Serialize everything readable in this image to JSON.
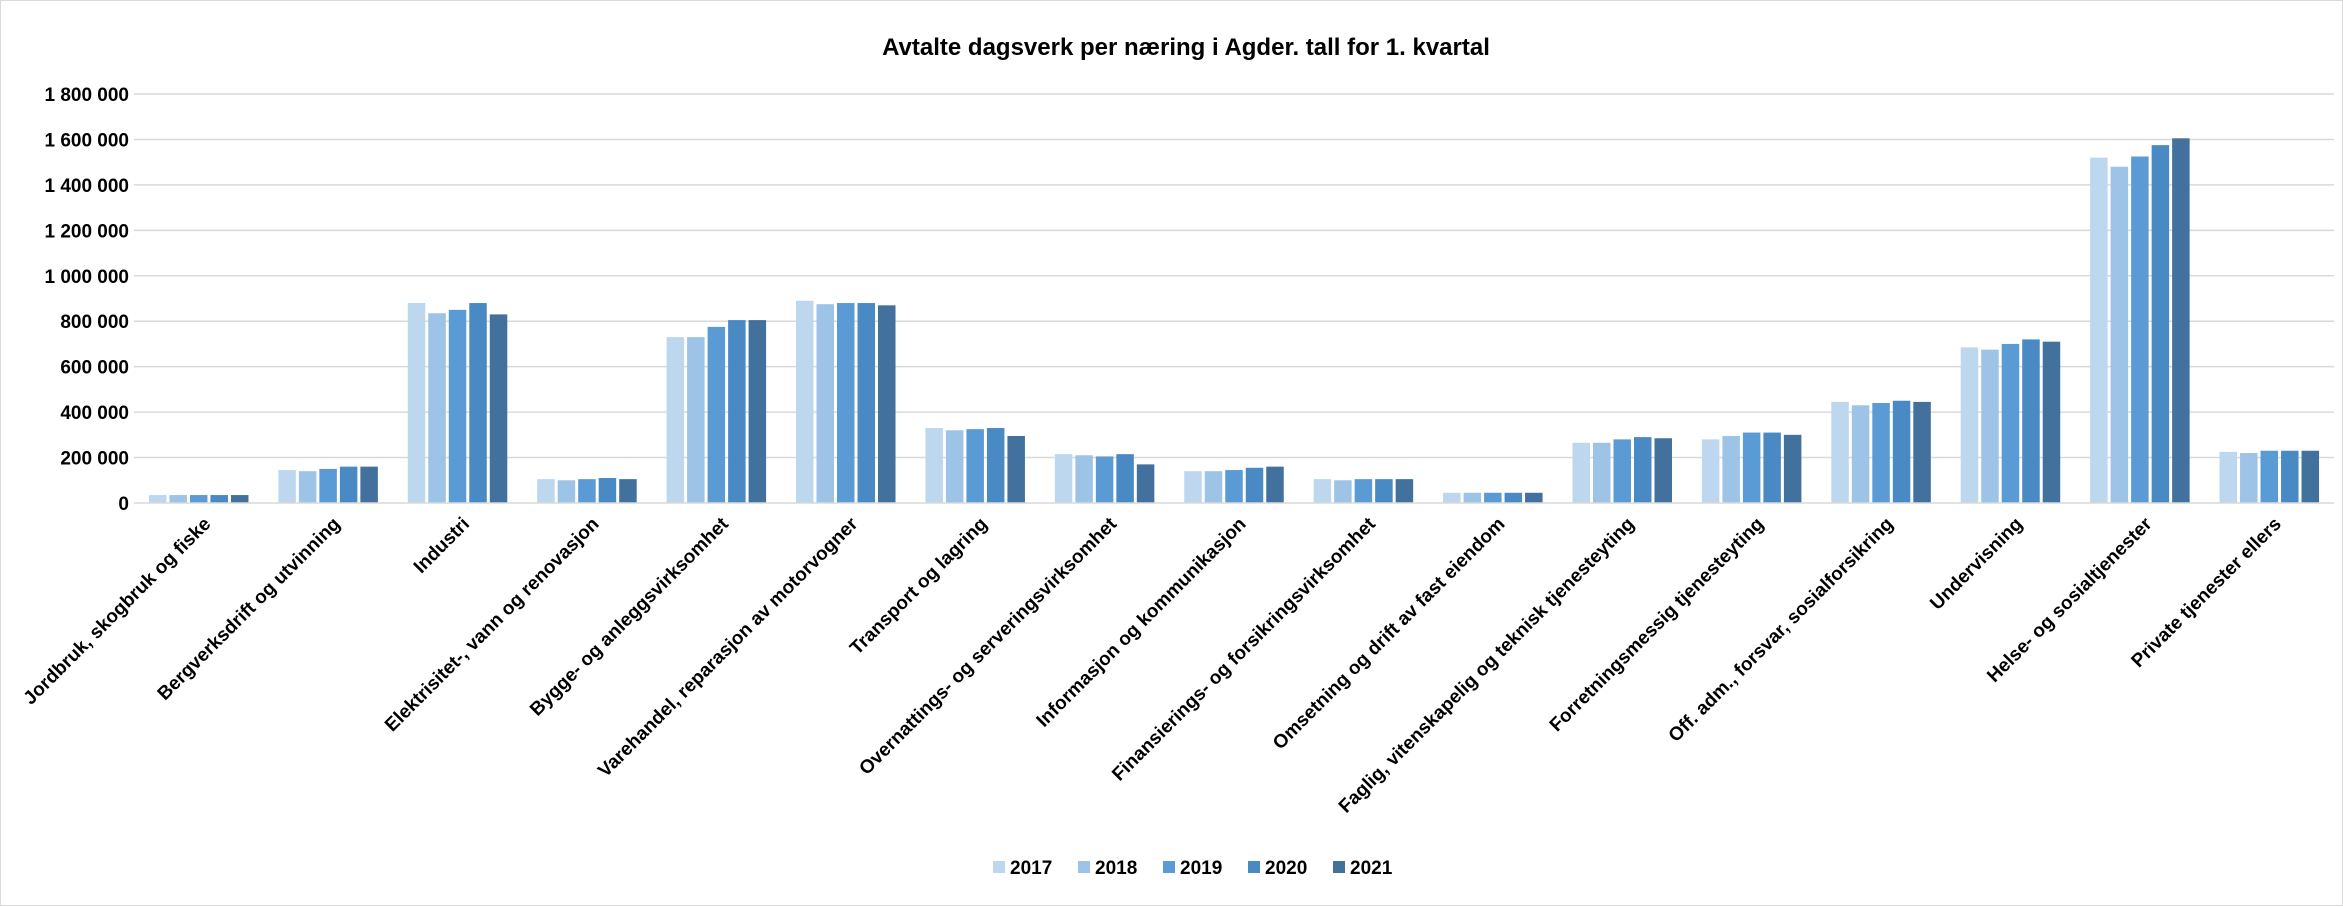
{
  "chart_data": {
    "type": "bar",
    "title": "Avtalte dagsverk per næring i Agder. tall for 1. kvartal",
    "xlabel": "",
    "ylabel": "",
    "ylim": [
      0,
      1800000
    ],
    "ytick_values": [
      0,
      200000,
      400000,
      600000,
      800000,
      1000000,
      1200000,
      1400000,
      1600000,
      1800000
    ],
    "ytick_labels": [
      "0",
      "200 000",
      "400 000",
      "600 000",
      "800 000",
      "1 000 000",
      "1 200 000",
      "1 400 000",
      "1 600 000",
      "1 800 000"
    ],
    "grid": true,
    "legend_position": "bottom",
    "categories": [
      "Jordbruk, skogbruk og fiske",
      "Bergverksdrift og utvinning",
      "Industri",
      "Elektrisitet-, vann og renovasjon",
      "Bygge- og anleggsvirksomhet",
      "Varehandel, reparasjon av motorvogner",
      "Transport og lagring",
      "Overnattings- og serveringsvirksomhet",
      "Informasjon og kommunikasjon",
      "Finansierings- og forsikringsvirksomhet",
      "Omsetning og drift av fast eiendom",
      "Faglig, vitenskapelig og teknisk tjenesteyting",
      "Forretningsmessig tjenesteyting",
      "Off. adm., forsvar, sosialforsikring",
      "Undervisning",
      "Helse- og sosialtjenester",
      "Private tjenester ellers"
    ],
    "series": [
      {
        "name": "2017",
        "color": "#bdd7ee",
        "values": [
          35000,
          145000,
          880000,
          105000,
          730000,
          890000,
          330000,
          215000,
          140000,
          105000,
          45000,
          265000,
          280000,
          445000,
          685000,
          1520000,
          225000
        ]
      },
      {
        "name": "2018",
        "color": "#9dc3e6",
        "values": [
          35000,
          140000,
          835000,
          100000,
          730000,
          875000,
          320000,
          210000,
          140000,
          100000,
          45000,
          265000,
          295000,
          430000,
          675000,
          1480000,
          220000
        ]
      },
      {
        "name": "2019",
        "color": "#5b9bd5",
        "values": [
          35000,
          150000,
          850000,
          105000,
          775000,
          880000,
          325000,
          205000,
          145000,
          105000,
          45000,
          280000,
          310000,
          440000,
          700000,
          1525000,
          230000
        ]
      },
      {
        "name": "2020",
        "color": "#4a8ac4",
        "values": [
          35000,
          160000,
          880000,
          110000,
          805000,
          880000,
          330000,
          215000,
          155000,
          105000,
          45000,
          290000,
          310000,
          450000,
          720000,
          1575000,
          230000
        ]
      },
      {
        "name": "2021",
        "color": "#41719c",
        "values": [
          35000,
          160000,
          830000,
          105000,
          805000,
          870000,
          295000,
          170000,
          160000,
          105000,
          45000,
          285000,
          300000,
          445000,
          710000,
          1605000,
          230000
        ]
      }
    ]
  }
}
